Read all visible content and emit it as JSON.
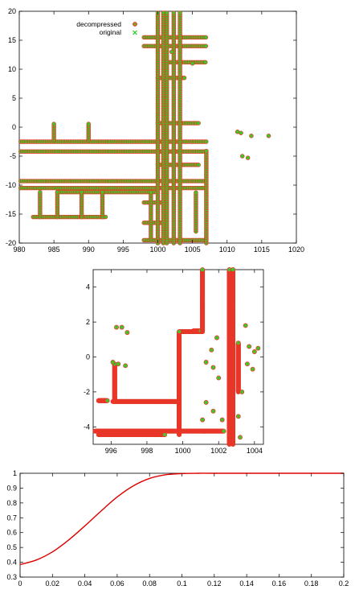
{
  "chart_data": [
    {
      "type": "scatter",
      "title": "",
      "xlabel": "",
      "ylabel": "",
      "xlim": [
        980,
        1020
      ],
      "ylim": [
        -20,
        20
      ],
      "xticks": [
        980,
        985,
        990,
        995,
        1000,
        1005,
        1010,
        1015,
        1020
      ],
      "yticks": [
        -20,
        -15,
        -10,
        -5,
        0,
        5,
        10,
        15,
        20
      ],
      "legend_position": "top-left",
      "grid": false,
      "series": [
        {
          "name": "decompressed",
          "marker": "circle",
          "color": "#e8372a"
        },
        {
          "name": "original",
          "marker": "x",
          "color": "#22d322"
        }
      ],
      "horizontal_segments": [
        {
          "y": -2.5,
          "x": [
            980.2,
            1007
          ]
        },
        {
          "y": -4.2,
          "x": [
            980.2,
            1007
          ]
        },
        {
          "y": -9.3,
          "x": [
            980.2,
            1007
          ]
        },
        {
          "y": -10.5,
          "x": [
            980.2,
            1007
          ]
        },
        {
          "y": -11.2,
          "x": [
            985.5,
            1000
          ]
        },
        {
          "y": -15.5,
          "x": [
            982,
            992.5
          ]
        },
        {
          "y": 15.5,
          "x": [
            998,
            1007
          ]
        },
        {
          "y": 14.0,
          "x": [
            998,
            1007
          ]
        },
        {
          "y": 11.2,
          "x": [
            1001,
            1007
          ]
        },
        {
          "y": 8.5,
          "x": [
            1000,
            1004
          ]
        },
        {
          "y": 0.7,
          "x": [
            1000,
            1006
          ]
        },
        {
          "y": -6.5,
          "x": [
            1000,
            1006
          ]
        },
        {
          "y": -13.0,
          "x": [
            998,
            1001
          ]
        },
        {
          "y": -16.5,
          "x": [
            998,
            1001
          ]
        },
        {
          "y": -19.5,
          "x": [
            998,
            1007
          ]
        }
      ],
      "vertical_segments": [
        {
          "x": 1000.0,
          "y": [
            -20,
            20
          ]
        },
        {
          "x": 1000.8,
          "y": [
            -20,
            20
          ]
        },
        {
          "x": 1001.3,
          "y": [
            -20,
            20
          ]
        },
        {
          "x": 1002.3,
          "y": [
            -20,
            20
          ]
        },
        {
          "x": 1003.2,
          "y": [
            -20,
            20
          ]
        },
        {
          "x": 1007.0,
          "y": [
            -20,
            -4
          ]
        },
        {
          "x": 1005.5,
          "y": [
            -18,
            -11
          ]
        },
        {
          "x": 985.0,
          "y": [
            -2.2,
            0.7
          ]
        },
        {
          "x": 990.0,
          "y": [
            -2.2,
            0.7
          ]
        },
        {
          "x": 983.0,
          "y": [
            -15.5,
            -11.2
          ]
        },
        {
          "x": 985.5,
          "y": [
            -15.5,
            -11.2
          ]
        },
        {
          "x": 989.0,
          "y": [
            -15.5,
            -11.2
          ]
        },
        {
          "x": 992.0,
          "y": [
            -15.5,
            -11.2
          ]
        },
        {
          "x": 999.0,
          "y": [
            -19.5,
            -11.2
          ]
        }
      ],
      "isolated_points": [
        {
          "x": 1011.5,
          "y": -0.8
        },
        {
          "x": 1012.0,
          "y": -1.0
        },
        {
          "x": 1013.5,
          "y": -1.5
        },
        {
          "x": 1016.0,
          "y": -1.5
        },
        {
          "x": 1012.2,
          "y": -5.0
        },
        {
          "x": 1013.0,
          "y": -5.3
        },
        {
          "x": 1002.0,
          "y": 13.0
        },
        {
          "x": 1005.0,
          "y": 11.0
        }
      ]
    },
    {
      "type": "scatter",
      "title": "",
      "xlabel": "",
      "ylabel": "",
      "xlim": [
        995,
        1004.5
      ],
      "ylim": [
        -5,
        5
      ],
      "xticks": [
        996,
        998,
        1000,
        1002,
        1004
      ],
      "yticks": [
        -4,
        -2,
        0,
        2,
        4
      ],
      "grid": false,
      "series": [
        {
          "name": "decompressed",
          "marker": "circle",
          "color": "#e8372a"
        },
        {
          "name": "original",
          "marker": "x",
          "color": "#22d322"
        }
      ],
      "horizontal_segments": [
        {
          "y": -4.25,
          "x": [
            995.1,
            1002.3
          ]
        },
        {
          "y": -4.45,
          "x": [
            995.3,
            999
          ]
        },
        {
          "y": -2.5,
          "x": [
            995.3,
            995.8
          ]
        },
        {
          "y": -2.55,
          "x": [
            996.1,
            999.8
          ]
        },
        {
          "y": 1.45,
          "x": [
            999.8,
            1001.1
          ]
        },
        {
          "y": 1.5,
          "x": [
            1000.6,
            1001.0
          ]
        }
      ],
      "vertical_segments": [
        {
          "x": 996.2,
          "y": [
            -2.55,
            -0.4
          ]
        },
        {
          "x": 999.8,
          "y": [
            -4.45,
            1.45
          ]
        },
        {
          "x": 1001.1,
          "y": [
            1.45,
            5
          ]
        },
        {
          "x": 1002.6,
          "y": [
            -5,
            5
          ]
        },
        {
          "x": 1002.8,
          "y": [
            -5,
            5
          ]
        },
        {
          "x": 1003.1,
          "y": [
            -2.0,
            0.8
          ]
        }
      ],
      "isolated_points": [
        {
          "x": 996.3,
          "y": 1.7
        },
        {
          "x": 996.6,
          "y": 1.7
        },
        {
          "x": 996.9,
          "y": 1.4
        },
        {
          "x": 996.1,
          "y": -0.3
        },
        {
          "x": 996.4,
          "y": -0.4
        },
        {
          "x": 996.8,
          "y": -0.5
        },
        {
          "x": 1001.3,
          "y": -0.3
        },
        {
          "x": 1001.7,
          "y": -0.6
        },
        {
          "x": 1001.6,
          "y": 0.4
        },
        {
          "x": 1002.0,
          "y": -1.2
        },
        {
          "x": 1001.9,
          "y": 1.1
        },
        {
          "x": 1001.3,
          "y": -2.6
        },
        {
          "x": 1001.7,
          "y": -3.1
        },
        {
          "x": 1002.2,
          "y": -3.6
        },
        {
          "x": 1001.1,
          "y": -3.6
        },
        {
          "x": 1003.6,
          "y": -0.4
        },
        {
          "x": 1003.9,
          "y": -0.7
        },
        {
          "x": 1003.7,
          "y": 0.6
        },
        {
          "x": 1004.0,
          "y": 0.3
        },
        {
          "x": 1004.2,
          "y": 0.5
        },
        {
          "x": 1003.5,
          "y": 1.8
        },
        {
          "x": 1003.3,
          "y": -2.0
        },
        {
          "x": 1003.1,
          "y": -3.4
        },
        {
          "x": 1003.2,
          "y": -4.6
        }
      ]
    },
    {
      "type": "line",
      "title": "",
      "xlabel": "",
      "ylabel": "",
      "xlim": [
        0,
        0.2
      ],
      "ylim": [
        0.3,
        1.0
      ],
      "xticks": [
        0,
        0.02,
        0.04,
        0.06,
        0.08,
        0.1,
        0.12,
        0.14,
        0.16,
        0.18,
        0.2
      ],
      "yticks": [
        0.3,
        0.4,
        0.5,
        0.6,
        0.7,
        0.8,
        0.9,
        1
      ],
      "grid": false,
      "series": [
        {
          "color": "#dd0000",
          "x": [
            0,
            0.01,
            0.02,
            0.03,
            0.04,
            0.05,
            0.06,
            0.07,
            0.08,
            0.09,
            0.1,
            0.11,
            0.12,
            0.14,
            0.16,
            0.18,
            0.2
          ],
          "y": [
            0.385,
            0.415,
            0.47,
            0.55,
            0.645,
            0.745,
            0.84,
            0.915,
            0.965,
            0.99,
            0.998,
            1.0,
            1.0,
            1.0,
            1.0,
            1.0,
            1.0
          ]
        }
      ]
    }
  ]
}
